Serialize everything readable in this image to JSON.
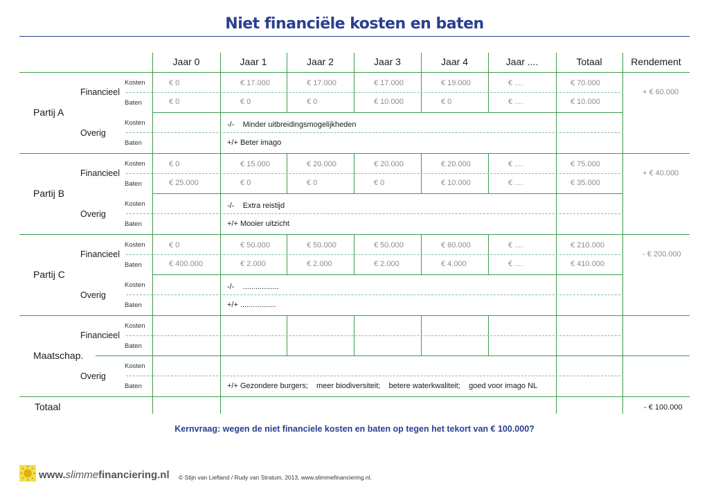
{
  "title": "Niet financiële kosten en baten",
  "columns": [
    "Jaar 0",
    "Jaar 1",
    "Jaar 2",
    "Jaar 3",
    "Jaar 4",
    "Jaar ....",
    "Totaal",
    "Rendement"
  ],
  "labels": {
    "kosten": "Kosten",
    "baten": "Baten",
    "financieel": "Financieel",
    "overig": "Overig",
    "totaal": "Totaal"
  },
  "parties": [
    {
      "name": "Partij A",
      "kosten": [
        "€ 0",
        "€ 17.000",
        "€ 17.000",
        "€ 17.000",
        "€ 19.000",
        "€ ....",
        "€ 70.000"
      ],
      "baten": [
        "€ 0",
        "€ 0",
        "€ 0",
        "€ 10.000",
        "€ 0",
        "€ ....",
        "€ 10.000"
      ],
      "rendement": "+ € 60.000",
      "overig_kosten": "-/-    Minder uitbreidingsmogelijkheden",
      "overig_baten": "+/+ Beter imago"
    },
    {
      "name": "Partij B",
      "kosten": [
        "€ 0",
        "€ 15.000",
        "€ 20.000",
        "€ 20.000",
        "€ 20.000",
        "€ ....",
        "€ 75.000"
      ],
      "baten": [
        "€ 25.000",
        "€ 0",
        "€ 0",
        "€ 0",
        "€ 10.000",
        "€ ....",
        "€ 35.000"
      ],
      "rendement": "+ € 40.000",
      "overig_kosten": "-/-    Extra reistijd",
      "overig_baten": "+/+ Mooier uitzicht"
    },
    {
      "name": "Partij C",
      "kosten": [
        "€ 0",
        "€ 50.000",
        "€ 50.000",
        "€ 50.000",
        "€ 60.000",
        "€ ....",
        "€ 210.000"
      ],
      "baten": [
        "€ 400.000",
        "€ 2.000",
        "€ 2.000",
        "€ 2.000",
        "€ 4.000",
        "€ ....",
        "€ 410.000"
      ],
      "rendement": "- € 200.000",
      "overig_kosten": "-/-    .................",
      "overig_baten": "+/+ ................."
    },
    {
      "name": "Maatschap.",
      "kosten": [
        "",
        "",
        "",
        "",
        "",
        "",
        ""
      ],
      "baten": [
        "",
        "",
        "",
        "",
        "",
        "",
        ""
      ],
      "rendement": "",
      "overig_kosten": "",
      "overig_baten": "+/+ Gezondere burgers;    meer biodiversiteit;    betere waterkwaliteit;    goed voor imago NL"
    }
  ],
  "total_rendement": "- € 100.000",
  "question": "Kernvraag: wegen de niet financiele kosten en baten op tegen het tekort van € 100.000?",
  "footer": {
    "brand_prefix": "www.",
    "brand_italic": "slimme",
    "brand_suffix": "financiering.nl",
    "copyright": "© Stijn van Liefland / Rudy van Stratum, 2013, www.slimmefinanciering.nl."
  },
  "colors": {
    "title": "#2b3f8f",
    "grid": "#3c9b4f",
    "dash": "#7fbf8d",
    "muted": "#8c8c8c"
  },
  "icons": [
    "sun-logo-icon"
  ]
}
